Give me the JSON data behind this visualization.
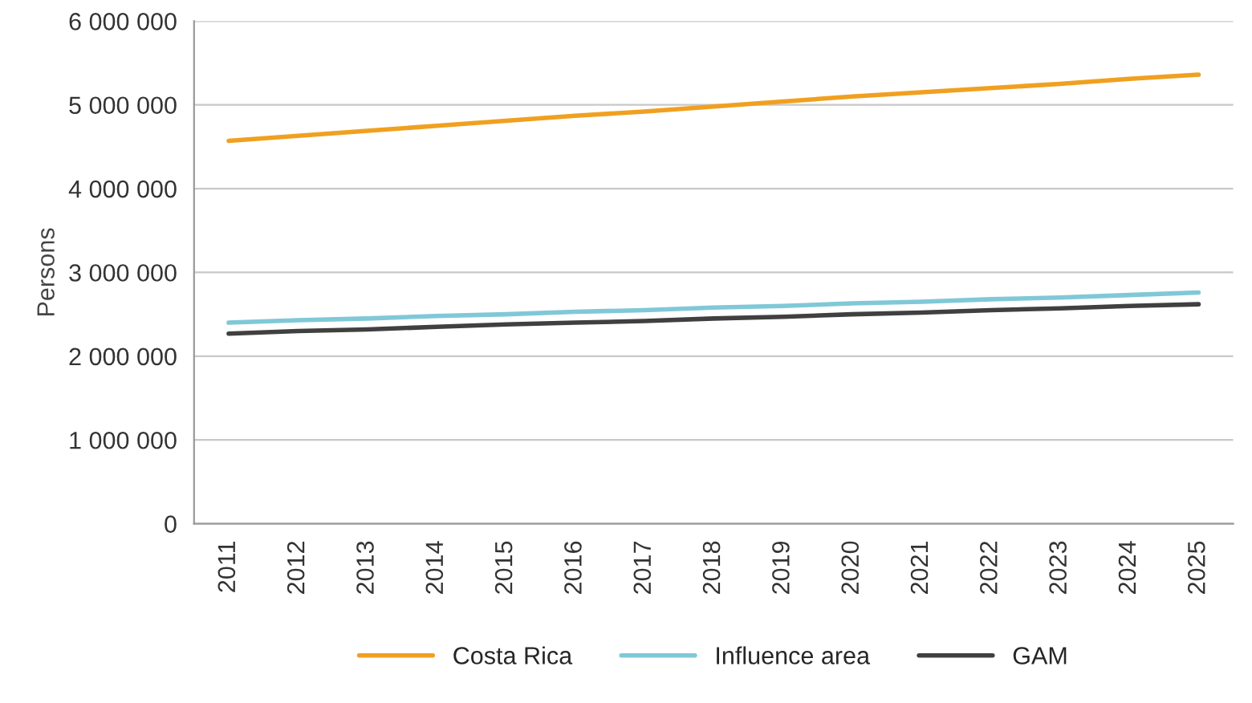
{
  "chart_data": {
    "type": "line",
    "ylabel": "Persons",
    "categories": [
      "2011",
      "2012",
      "2013",
      "2014",
      "2015",
      "2016",
      "2017",
      "2018",
      "2019",
      "2020",
      "2021",
      "2022",
      "2023",
      "2024",
      "2025"
    ],
    "series": [
      {
        "name": "Costa Rica",
        "color": "#f0a020",
        "values": [
          4570000,
          4630000,
          4690000,
          4750000,
          4810000,
          4870000,
          4920000,
          4980000,
          5040000,
          5100000,
          5150000,
          5200000,
          5250000,
          5310000,
          5360000
        ]
      },
      {
        "name": "Influence area",
        "color": "#80c8d8",
        "values": [
          2400000,
          2430000,
          2450000,
          2480000,
          2500000,
          2530000,
          2550000,
          2580000,
          2600000,
          2630000,
          2650000,
          2680000,
          2700000,
          2730000,
          2760000
        ]
      },
      {
        "name": "GAM",
        "color": "#404040",
        "values": [
          2270000,
          2300000,
          2320000,
          2350000,
          2380000,
          2400000,
          2420000,
          2450000,
          2470000,
          2500000,
          2520000,
          2550000,
          2570000,
          2600000,
          2620000
        ]
      }
    ],
    "ylim": [
      0,
      6000000
    ],
    "yticks": [
      {
        "value": 0,
        "label": "0"
      },
      {
        "value": 1000000,
        "label": "1 000 000"
      },
      {
        "value": 2000000,
        "label": "2 000 000"
      },
      {
        "value": 3000000,
        "label": "3 000 000"
      },
      {
        "value": 4000000,
        "label": "4 000 000"
      },
      {
        "value": 5000000,
        "label": "5 000 000"
      },
      {
        "value": 6000000,
        "label": "6 000 000"
      }
    ],
    "grid": "y",
    "legend": "bottom",
    "marker": "none",
    "line_style": "solid"
  }
}
